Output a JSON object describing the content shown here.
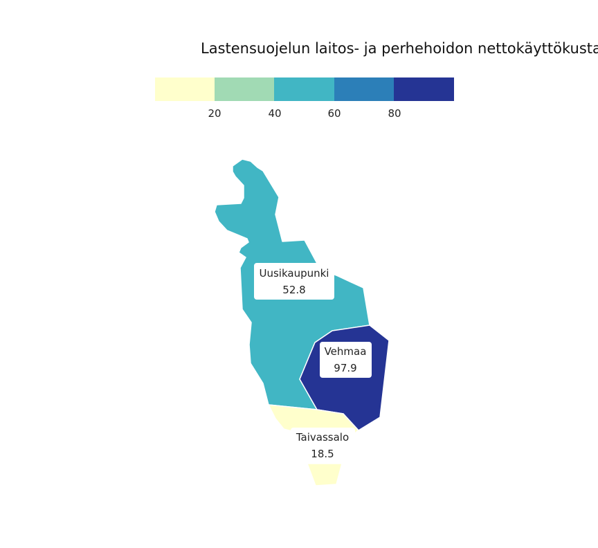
{
  "map": {
    "title": "Lastensuojelun laitos- ja perhehoidon nettokäyttökusta",
    "legend": {
      "colors": [
        "#ffffcc",
        "#a1dab4",
        "#41b6c4",
        "#2c7fb8",
        "#253494"
      ],
      "ticks": [
        "20",
        "40",
        "60",
        "80"
      ],
      "breaks": [
        20,
        40,
        60,
        80
      ]
    },
    "regions": [
      {
        "name": "Uusikaupunki",
        "value": "52.8",
        "color": "#41b6c4"
      },
      {
        "name": "Vehmaa",
        "value": "97.9",
        "color": "#253494"
      },
      {
        "name": "Taivassalo",
        "value": "18.5",
        "color": "#ffffcc"
      }
    ]
  }
}
